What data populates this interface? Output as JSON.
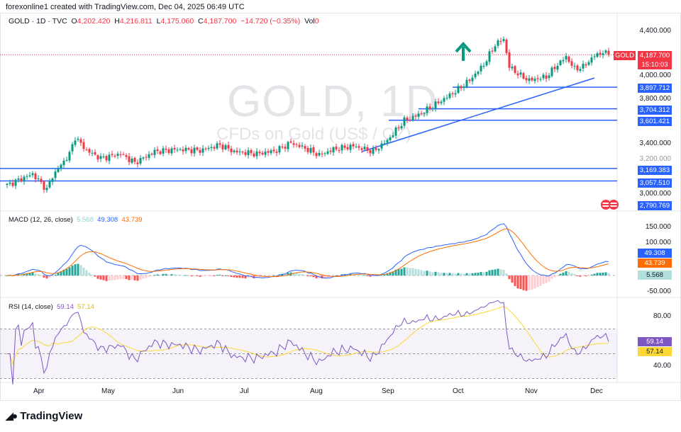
{
  "credit": "forexonline1 created with TradingView.com, Dec 04, 2025 06:49 UTC",
  "legend": {
    "symbol": "GOLD · 1D · TVC",
    "o_label": "O",
    "o": "4,202.420",
    "h_label": "H",
    "h": "4,216.811",
    "l_label": "L",
    "l": "4,175.060",
    "c_label": "C",
    "c": "4,187.700",
    "change": "−14.720 (−0.35%)",
    "vol_label": "Vol",
    "vol": "0"
  },
  "watermark": {
    "title": "GOLD, 1D",
    "subtitle": "CFDs on Gold (US$ / OZ)"
  },
  "price_axis": [
    "4,400.000",
    "4,000.000",
    "3,800.000",
    "3,400.000",
    "3,200.000",
    "3,000.000"
  ],
  "price_tag": {
    "symbol": "GOLD",
    "price": "4,187.700",
    "countdown": "15:10:03"
  },
  "levels": [
    "3,897.712",
    "3,704.312",
    "3,601.421",
    "3,169.383",
    "3,057.510"
  ],
  "low_tag": "2,790.769",
  "macd": {
    "label": "MACD (12, 26, close)",
    "v_hist": "5.568",
    "v_macd": "49.308",
    "v_signal": "43.739",
    "axis": [
      "150.000",
      "100.000",
      "-50.000"
    ]
  },
  "rsi": {
    "label": "RSI (14, close)",
    "v_rsi": "59.14",
    "v_ma": "57.14",
    "axis": [
      "80.00",
      "40.00"
    ]
  },
  "months": [
    "Apr",
    "May",
    "Jun",
    "Jul",
    "Aug",
    "Sep",
    "Oct",
    "Nov",
    "Dec"
  ],
  "brand": "TradingView",
  "colors": {
    "up": "#089981",
    "down": "#f23645",
    "macd": "#2962ff",
    "signal": "#ff6d00",
    "rsi": "#7e57c2",
    "rsi_ma": "#fdd835",
    "level": "#2962ff"
  },
  "chart_data": {
    "type": "candlestick",
    "symbol": "GOLD",
    "timeframe": "1D",
    "anchors": [
      [
        0,
        3020
      ],
      [
        9,
        3120
      ],
      [
        14,
        2980
      ],
      [
        16,
        3100
      ],
      [
        22,
        3300
      ],
      [
        24,
        3450
      ],
      [
        28,
        3330
      ],
      [
        33,
        3260
      ],
      [
        40,
        3300
      ],
      [
        45,
        3220
      ],
      [
        52,
        3320
      ],
      [
        60,
        3340
      ],
      [
        68,
        3330
      ],
      [
        75,
        3380
      ],
      [
        80,
        3320
      ],
      [
        88,
        3300
      ],
      [
        95,
        3330
      ],
      [
        100,
        3400
      ],
      [
        105,
        3350
      ],
      [
        110,
        3290
      ],
      [
        115,
        3340
      ],
      [
        122,
        3370
      ],
      [
        129,
        3320
      ],
      [
        134,
        3420
      ],
      [
        140,
        3600
      ],
      [
        145,
        3650
      ],
      [
        152,
        3760
      ],
      [
        158,
        3860
      ],
      [
        163,
        3960
      ],
      [
        168,
        4100
      ],
      [
        172,
        4280
      ],
      [
        175,
        4330
      ],
      [
        177,
        4080
      ],
      [
        181,
        4000
      ],
      [
        184,
        3960
      ],
      [
        190,
        3990
      ],
      [
        194,
        4100
      ],
      [
        197,
        4170
      ],
      [
        200,
        4060
      ],
      [
        203,
        4080
      ],
      [
        207,
        4180
      ],
      [
        210,
        4210
      ],
      [
        212,
        4188
      ]
    ],
    "levels": [
      3897.712,
      3704.312,
      3601.421,
      3169.383,
      3057.51
    ],
    "trendline": [
      [
        3320,
        125
      ],
      [
        3980,
        207
      ]
    ]
  }
}
